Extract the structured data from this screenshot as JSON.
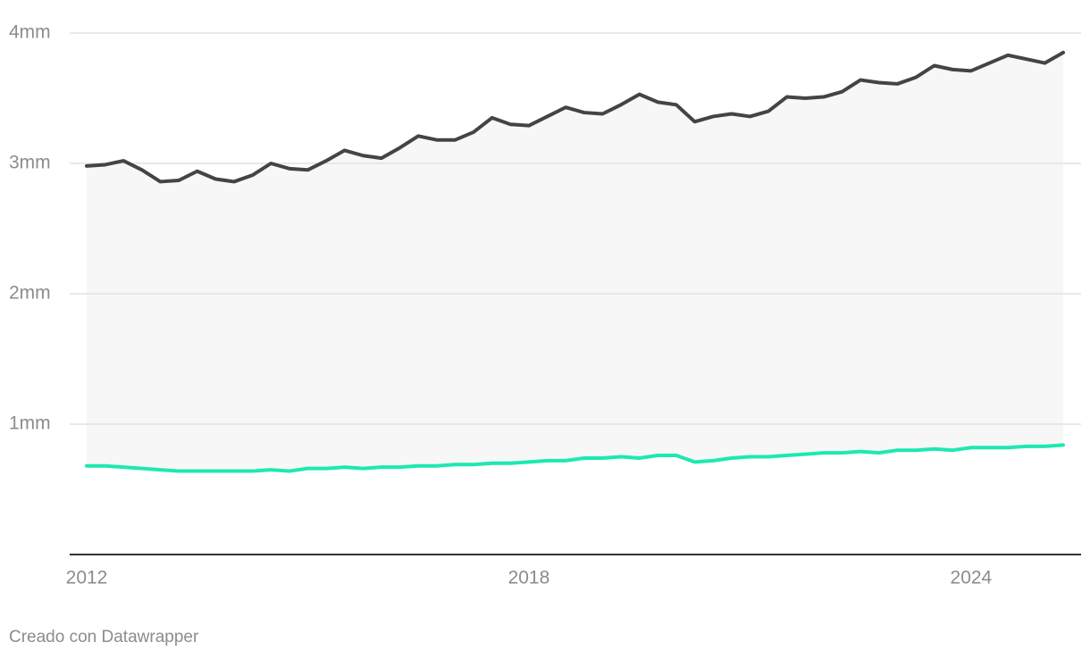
{
  "chart_data": {
    "type": "line",
    "x": [
      2012,
      2012.25,
      2012.5,
      2012.75,
      2013,
      2013.25,
      2013.5,
      2013.75,
      2014,
      2014.25,
      2014.5,
      2014.75,
      2015,
      2015.25,
      2015.5,
      2015.75,
      2016,
      2016.25,
      2016.5,
      2016.75,
      2017,
      2017.25,
      2017.5,
      2017.75,
      2018,
      2018.25,
      2018.5,
      2018.75,
      2019,
      2019.25,
      2019.5,
      2019.75,
      2020,
      2020.25,
      2020.5,
      2020.75,
      2021,
      2021.25,
      2021.5,
      2021.75,
      2022,
      2022.25,
      2022.5,
      2022.75,
      2023,
      2023.25,
      2023.5,
      2023.75,
      2024,
      2024.25,
      2024.5,
      2024.75,
      2025,
      2025.25
    ],
    "series": [
      {
        "color": "#444444",
        "values": [
          2.98,
          2.99,
          3.02,
          2.95,
          2.86,
          2.87,
          2.94,
          2.88,
          2.86,
          2.91,
          3.0,
          2.96,
          2.95,
          3.02,
          3.1,
          3.06,
          3.04,
          3.12,
          3.21,
          3.18,
          3.18,
          3.24,
          3.35,
          3.3,
          3.29,
          3.36,
          3.43,
          3.39,
          3.38,
          3.45,
          3.53,
          3.47,
          3.45,
          3.32,
          3.36,
          3.38,
          3.36,
          3.4,
          3.51,
          3.5,
          3.51,
          3.55,
          3.64,
          3.62,
          3.61,
          3.66,
          3.75,
          3.72,
          3.71,
          3.77,
          3.83,
          3.8,
          3.77,
          3.85
        ]
      },
      {
        "color": "#1de9b0",
        "values": [
          0.68,
          0.68,
          0.67,
          0.66,
          0.65,
          0.64,
          0.64,
          0.64,
          0.64,
          0.64,
          0.65,
          0.64,
          0.66,
          0.66,
          0.67,
          0.66,
          0.67,
          0.67,
          0.68,
          0.68,
          0.69,
          0.69,
          0.7,
          0.7,
          0.71,
          0.72,
          0.72,
          0.74,
          0.74,
          0.75,
          0.74,
          0.76,
          0.76,
          0.71,
          0.72,
          0.74,
          0.75,
          0.75,
          0.76,
          0.77,
          0.78,
          0.78,
          0.79,
          0.78,
          0.8,
          0.8,
          0.81,
          0.8,
          0.82,
          0.82,
          0.82,
          0.83,
          0.83,
          0.84
        ]
      }
    ],
    "area_between": true,
    "area_color": "#f7f7f7",
    "xlim": [
      2012,
      2025.25
    ],
    "xticks": [
      2012,
      2018,
      2024
    ],
    "ylim": [
      0,
      4
    ],
    "yticks": [
      {
        "value": 1,
        "label": "1mm"
      },
      {
        "value": 2,
        "label": "2mm"
      },
      {
        "value": 3,
        "label": "3mm"
      },
      {
        "value": 4,
        "label": "4mm"
      }
    ],
    "grid": true,
    "footer": "Creado con Datawrapper"
  }
}
